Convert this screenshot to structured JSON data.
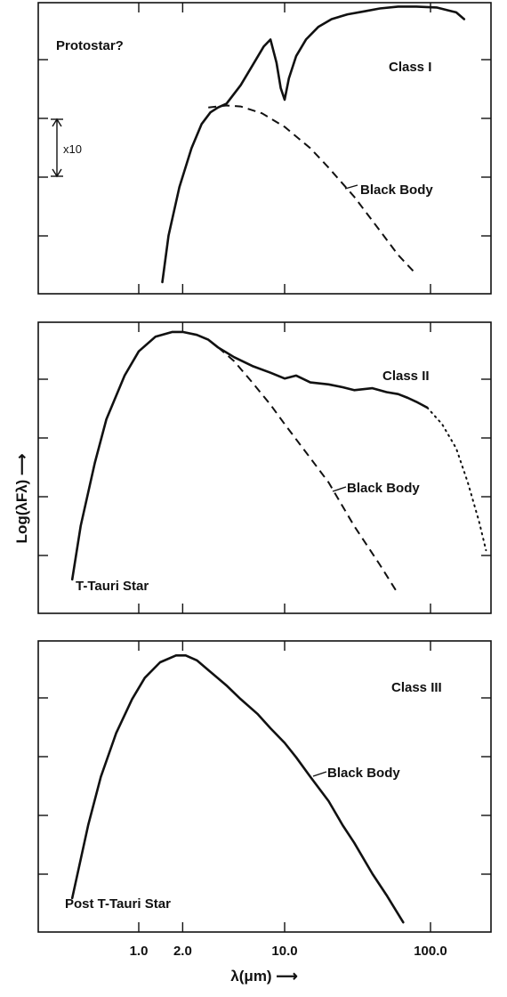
{
  "chart_data": [
    {
      "type": "line",
      "xscale": "log",
      "xlim": [
        0.3,
        300
      ],
      "yrange_decades": [
        0,
        3.0
      ],
      "scale_bar_label": "x10",
      "annotations": {
        "object": "Protostar?",
        "class": "Class I",
        "bb_label": "Black Body"
      },
      "series": [
        {
          "x": [
            1.45,
            1.6,
            1.9,
            2.3,
            2.7,
            3.1,
            3.5,
            4.0,
            5.0,
            6.0,
            7.2,
            8.0,
            8.8,
            9.4,
            10.0,
            10.7,
            12,
            14,
            17,
            21,
            27,
            35,
            45,
            60,
            80,
            110,
            150,
            170
          ],
          "y": [
            0.12,
            0.6,
            1.1,
            1.5,
            1.75,
            1.87,
            1.92,
            1.96,
            2.15,
            2.35,
            2.55,
            2.62,
            2.38,
            2.12,
            2.0,
            2.22,
            2.45,
            2.62,
            2.75,
            2.83,
            2.88,
            2.91,
            2.94,
            2.96,
            2.96,
            2.95,
            2.9,
            2.83
          ]
        },
        {
          "style": "dashed",
          "x": [
            3.0,
            4.0,
            5.0,
            7.0,
            10,
            15,
            20,
            30,
            45,
            60,
            80
          ],
          "y": [
            1.92,
            1.94,
            1.93,
            1.86,
            1.72,
            1.5,
            1.3,
            1.0,
            0.65,
            0.4,
            0.2
          ]
        }
      ]
    },
    {
      "type": "line",
      "xscale": "log",
      "xlim": [
        0.3,
        300
      ],
      "yrange_decades": [
        0,
        3.0
      ],
      "annotations": {
        "object": "T-Tauri Star",
        "class": "Class II",
        "bb_label": "Black Body"
      },
      "series": [
        {
          "x": [
            0.35,
            0.4,
            0.5,
            0.6,
            0.8,
            1.0,
            1.3,
            1.7,
            2.0,
            2.5,
            3.0,
            3.5,
            4.5,
            6,
            8,
            10,
            12,
            15,
            20,
            25,
            30,
            40,
            50,
            60,
            70,
            80,
            95
          ],
          "y": [
            0.35,
            0.9,
            1.55,
            2.0,
            2.45,
            2.7,
            2.85,
            2.9,
            2.9,
            2.87,
            2.82,
            2.74,
            2.64,
            2.55,
            2.48,
            2.42,
            2.45,
            2.38,
            2.36,
            2.33,
            2.3,
            2.32,
            2.28,
            2.26,
            2.22,
            2.18,
            2.12
          ]
        },
        {
          "style": "dashed",
          "x": [
            3.5,
            4.5,
            6,
            8,
            10,
            15,
            20,
            30,
            45,
            60
          ],
          "y": [
            2.74,
            2.6,
            2.38,
            2.15,
            1.95,
            1.6,
            1.35,
            0.9,
            0.5,
            0.2
          ]
        },
        {
          "style": "dotted",
          "x": [
            95,
            120,
            150,
            180,
            215,
            240
          ],
          "y": [
            2.12,
            1.95,
            1.7,
            1.35,
            0.95,
            0.65
          ]
        }
      ]
    },
    {
      "type": "line",
      "xscale": "log",
      "xlim": [
        0.3,
        300
      ],
      "yrange_decades": [
        0,
        3.0
      ],
      "xticklabels": [
        "1.0",
        "2.0",
        "10.0",
        "100.0"
      ],
      "xticks": [
        1,
        2,
        10,
        100
      ],
      "annotations": {
        "object": "Post T-Tauri Star",
        "class": "Class III",
        "bb_label": "Black Body"
      },
      "series": [
        {
          "x": [
            0.35,
            0.45,
            0.55,
            0.7,
            0.9,
            1.1,
            1.4,
            1.8,
            2.1,
            2.5,
            3,
            4,
            5,
            6.5,
            8,
            10,
            12,
            15,
            20,
            25,
            30,
            40,
            50,
            65
          ],
          "y": [
            0.35,
            1.1,
            1.6,
            2.05,
            2.4,
            2.62,
            2.78,
            2.85,
            2.85,
            2.8,
            2.7,
            2.54,
            2.4,
            2.25,
            2.1,
            1.95,
            1.8,
            1.6,
            1.35,
            1.1,
            0.92,
            0.6,
            0.38,
            0.1
          ]
        }
      ]
    }
  ],
  "axes": {
    "ylabel": "Log(λFλ) ⟶",
    "xlabel": "λ(μm) ⟶"
  }
}
